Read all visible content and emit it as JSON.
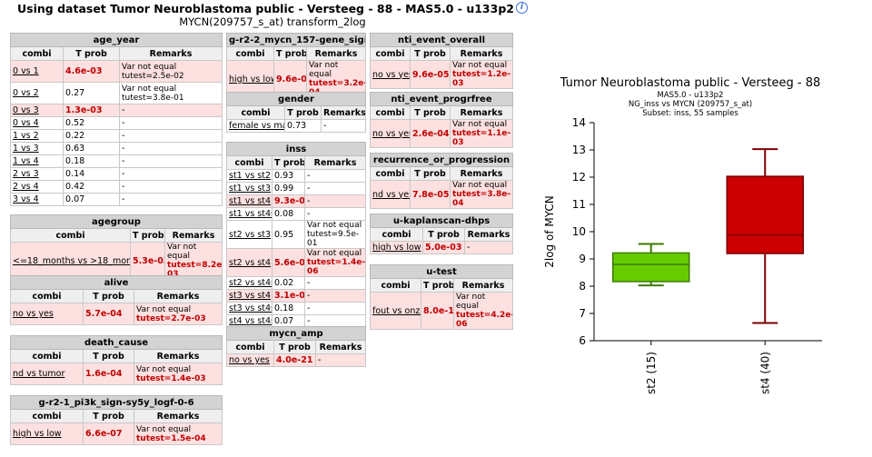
{
  "header": {
    "title": "Using dataset Tumor Neuroblastoma public - Versteeg - 88 - MAS5.0 - u133p2",
    "subtitle": "MYCN(209757_s_at) transform_2log"
  },
  "columns": {
    "combi": "combi",
    "tprob": "T prob",
    "remarks": "Remarks"
  },
  "tables": {
    "age_year": {
      "title": "age_year",
      "rows": [
        {
          "combi": "0 vs 1",
          "tprob": "4.6e-03",
          "remarks": "Var not equal tutest=2.5e-02"
        },
        {
          "combi": "0 vs 2",
          "tprob": "0.27",
          "remarks": "Var not equal tutest=3.8e-01"
        },
        {
          "combi": "0 vs 3",
          "tprob": "1.3e-03",
          "remarks": "-"
        },
        {
          "combi": "0 vs 4",
          "tprob": "0.52",
          "remarks": "-"
        },
        {
          "combi": "1 vs 2",
          "tprob": "0.22",
          "remarks": "-"
        },
        {
          "combi": "1 vs 3",
          "tprob": "0.63",
          "remarks": "-"
        },
        {
          "combi": "1 vs 4",
          "tprob": "0.18",
          "remarks": "-"
        },
        {
          "combi": "2 vs 3",
          "tprob": "0.14",
          "remarks": "-"
        },
        {
          "combi": "2 vs 4",
          "tprob": "0.42",
          "remarks": "-"
        },
        {
          "combi": "3 vs 4",
          "tprob": "0.07",
          "remarks": "-"
        }
      ]
    },
    "agegroup": {
      "title": "agegroup",
      "rows": [
        {
          "combi": "<=18_months vs >18_months",
          "tprob": "5.3e-03",
          "remarks_a": "Var not equal",
          "remarks_b": "tutest=8.2e-03"
        }
      ]
    },
    "alive": {
      "title": "alive",
      "rows": [
        {
          "combi": "no vs yes",
          "tprob": "5.7e-04",
          "remarks_a": "Var not equal",
          "remarks_b": "tutest=2.7e-03"
        }
      ]
    },
    "death_cause": {
      "title": "death_cause",
      "rows": [
        {
          "combi": "nd vs tumor",
          "tprob": "1.6e-04",
          "remarks_a": "Var not equal",
          "remarks_b": "tutest=1.4e-03"
        }
      ]
    },
    "pi3k": {
      "title": "g-r2-1_pi3k_sign-sy5y_logf-0-6",
      "rows": [
        {
          "combi": "high vs low",
          "tprob": "6.6e-07",
          "remarks_a": "Var not equal",
          "remarks_b": "tutest=1.5e-04"
        }
      ]
    },
    "mycn157": {
      "title": "g-r2-2_mycn_157-gene_sign-",
      "rows": [
        {
          "combi": "high vs low",
          "tprob": "9.6e-07",
          "remarks_a": "Var not equal",
          "remarks_b": "tutest=3.2e-04"
        }
      ]
    },
    "gender": {
      "title": "gender",
      "rows": [
        {
          "combi": "female vs male",
          "tprob": "0.73",
          "remarks": "-"
        }
      ]
    },
    "inss": {
      "title": "inss",
      "rows": [
        {
          "combi": "st1 vs st2",
          "tprob": "0.93",
          "remarks": "-"
        },
        {
          "combi": "st1 vs st3",
          "tprob": "0.99",
          "remarks": "-"
        },
        {
          "combi": "st1 vs st4",
          "tprob": "9.3e-03",
          "remarks": "-"
        },
        {
          "combi": "st1 vs st4s",
          "tprob": "0.08",
          "remarks": "-"
        },
        {
          "combi": "st2 vs st3",
          "tprob": "0.95",
          "remarks_a": "Var not equal",
          "remarks_b": "tutest=9.5e-01"
        },
        {
          "combi": "st2 vs st4",
          "tprob": "5.6e-04",
          "remarks_a": "Var not equal",
          "remarks_b": "tutest=1.4e-06"
        },
        {
          "combi": "st2 vs st4s",
          "tprob": "0.02",
          "remarks": "-"
        },
        {
          "combi": "st3 vs st4",
          "tprob": "3.1e-03",
          "remarks": "-"
        },
        {
          "combi": "st3 vs st4s",
          "tprob": "0.18",
          "remarks": "-"
        },
        {
          "combi": "st4 vs st4s",
          "tprob": "0.07",
          "remarks": "-"
        }
      ]
    },
    "mycn_amp": {
      "title": "mycn_amp",
      "rows": [
        {
          "combi": "no vs yes",
          "tprob": "4.0e-21",
          "remarks": "-"
        }
      ]
    },
    "nti_overall": {
      "title": "nti_event_overall",
      "rows": [
        {
          "combi": "no vs yes",
          "tprob": "9.6e-05",
          "remarks_a": "Var not equal",
          "remarks_b": "tutest=1.2e-03"
        }
      ]
    },
    "nti_progr": {
      "title": "nti_event_progrfree",
      "rows": [
        {
          "combi": "no vs yes",
          "tprob": "2.6e-04",
          "remarks_a": "Var not equal",
          "remarks_b": "tutest=1.1e-03"
        }
      ]
    },
    "recurrence": {
      "title": "recurrence_or_progression",
      "rows": [
        {
          "combi": "nd vs yes",
          "tprob": "7.8e-05",
          "remarks_a": "Var not equal",
          "remarks_b": "tutest=3.8e-04"
        }
      ]
    },
    "kaplan": {
      "title": "u-kaplanscan-dhps",
      "rows": [
        {
          "combi": "high vs low",
          "tprob": "5.0e-03",
          "remarks": "-"
        }
      ]
    },
    "utest": {
      "title": "u-test",
      "rows": [
        {
          "combi": "fout vs onzin",
          "tprob": "8.0e-12",
          "remarks_a": "Var not equal",
          "remarks_b": "tutest=4.2e-06"
        }
      ]
    }
  },
  "chart_data": {
    "type": "box",
    "title": "Tumor Neuroblastoma public - Versteeg - 88",
    "subtitle_lines": [
      "MAS5.0 - u133p2",
      "NG_inss vs MYCN (209757_s_at)",
      "Subset: inss, 55 samples"
    ],
    "ylabel": "2log of MYCN",
    "ylim": [
      6,
      14
    ],
    "yticks": [
      "6",
      "7",
      "8",
      "9",
      "10",
      "11",
      "12",
      "13",
      "14"
    ],
    "boxes": [
      {
        "label": "st2 (15)",
        "min": 8.03,
        "q1": 8.17,
        "median": 8.8,
        "q3": 9.22,
        "max": 9.55,
        "color": "#66cc00"
      },
      {
        "label": "st4 (40)",
        "min": 6.65,
        "q1": 9.2,
        "median": 9.88,
        "q3": 12.03,
        "max": 13.03,
        "color": "#cc0000"
      }
    ]
  }
}
